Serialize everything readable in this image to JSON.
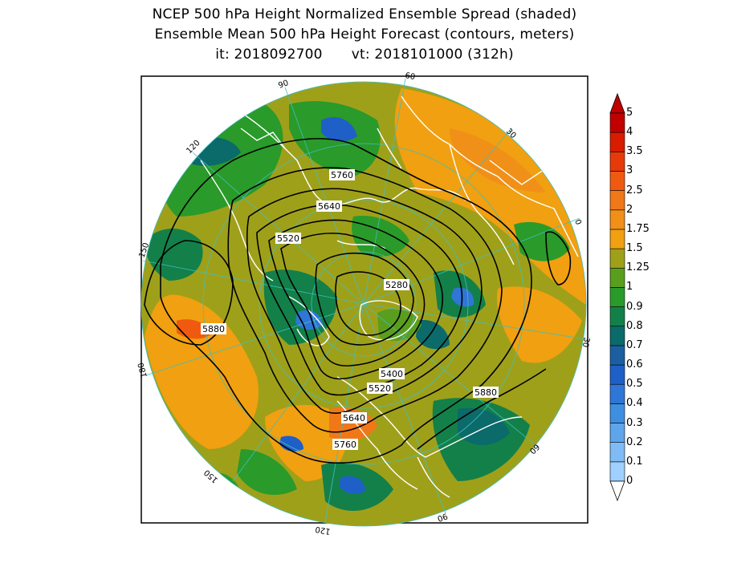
{
  "title": {
    "line1": "NCEP 500 hPa Height Normalized Ensemble Spread (shaded)",
    "line2": "Ensemble Mean 500 hPa Height Forecast (contours, meters)",
    "init_label": "it: 2018092700",
    "valid_label": "vt: 2018101000 (312h)"
  },
  "map": {
    "projection": "polar-stereographic-north",
    "longitude_labels": [
      "60",
      "30",
      "0",
      "30",
      "60",
      "90",
      "120",
      "150",
      "180",
      "150",
      "120",
      "90"
    ],
    "contour_labels": [
      "5760",
      "5640",
      "5520",
      "5280",
      "5880",
      "5400",
      "5520",
      "5640",
      "5760",
      "5880"
    ],
    "coastline_color": "#ffffff",
    "contour_color": "#000000",
    "graticule_color": "#3fbfbf"
  },
  "colorbar": {
    "levels": [
      "0",
      "0.1",
      "0.2",
      "0.3",
      "0.4",
      "0.5",
      "0.6",
      "0.7",
      "0.8",
      "0.9",
      "1",
      "1.25",
      "1.5",
      "1.75",
      "2",
      "2.5",
      "3",
      "3.5",
      "4",
      "5"
    ],
    "colors": [
      "#9fd0ff",
      "#7fbcf5",
      "#5fa5eb",
      "#3f8fe0",
      "#2f76d6",
      "#1f5fc8",
      "#1b5fa0",
      "#0b6a6a",
      "#13804a",
      "#2a9a2a",
      "#5a9e1e",
      "#9fa01a",
      "#f0a010",
      "#f09018",
      "#f07818",
      "#f05a10",
      "#e83a08",
      "#d81c00",
      "#c00000"
    ]
  }
}
